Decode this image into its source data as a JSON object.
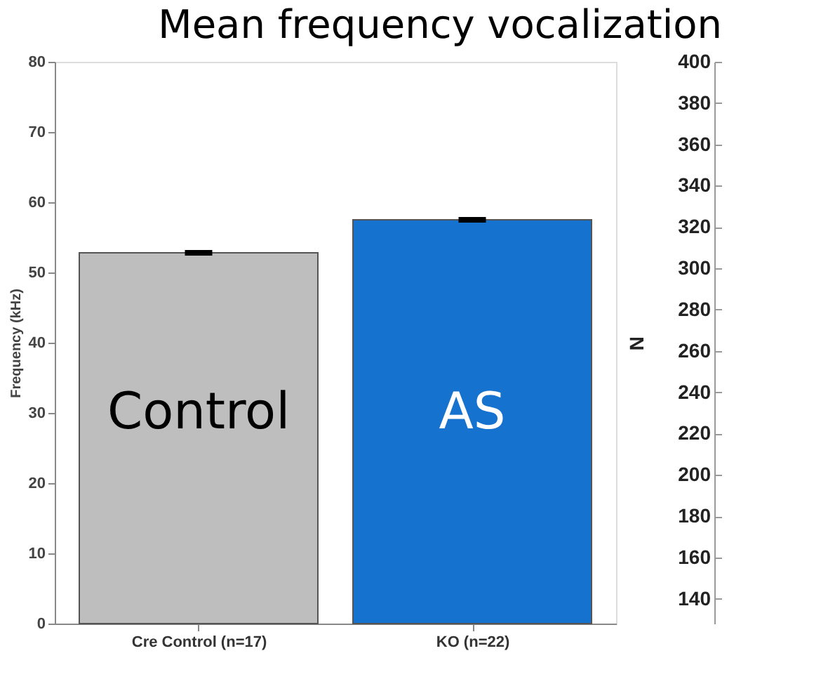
{
  "chart_data": {
    "type": "bar",
    "title": "Mean frequency vocalization",
    "ylabel": "Frequency (kHz)",
    "categories": [
      "Cre Control (n=17)",
      "KO (n=22)"
    ],
    "values": [
      52.8,
      57.5
    ],
    "colors": [
      "#bebebe",
      "#1572cf"
    ],
    "errors": [
      0.2,
      0.2
    ],
    "ylim": [
      0,
      80
    ],
    "yticks": [
      0,
      10,
      20,
      30,
      40,
      50,
      60,
      70,
      80
    ],
    "annotations": [
      "Control",
      "AS"
    ],
    "y2label": "N",
    "y2lim": [
      128,
      400
    ],
    "y2ticks": [
      140,
      160,
      180,
      200,
      220,
      240,
      260,
      280,
      300,
      320,
      340,
      360,
      380,
      400
    ]
  }
}
